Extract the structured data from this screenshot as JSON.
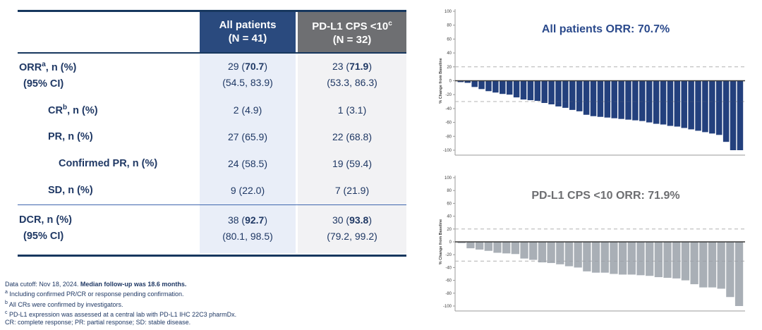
{
  "table": {
    "header": {
      "col1": {
        "line1": "All patients",
        "line2": "(N = 41)"
      },
      "col2": {
        "line1_pre": "PD-L1 CPS <10",
        "line1_sup": "c",
        "line2": "(N = 32)"
      }
    },
    "rows": [
      {
        "label_main": "ORR",
        "label_sup": "a",
        "label_rest": ", n (%)",
        "label_sub": "(95% CI)",
        "cells": [
          {
            "pre": "29 (",
            "bold": "70.7",
            "post": ")",
            "sub": "(54.5, 83.9)"
          },
          {
            "pre": "23 (",
            "bold": "71.9",
            "post": ")",
            "sub": "(53.3, 86.3)"
          }
        ]
      },
      {
        "label_main": "CR",
        "label_sup": "b",
        "label_rest": ", n (%)",
        "cells": [
          {
            "pre": "2 (4.9)"
          },
          {
            "pre": "1 (3.1)"
          }
        ]
      },
      {
        "label_main": "PR",
        "label_rest": ", n (%)",
        "cells": [
          {
            "pre": "27 (65.9)"
          },
          {
            "pre": "22 (68.8)"
          }
        ]
      },
      {
        "label_main": "Confirmed PR",
        "label_rest": ", n (%)",
        "cells": [
          {
            "pre": "24 (58.5)"
          },
          {
            "pre": "19 (59.4)"
          }
        ]
      },
      {
        "label_main": "SD",
        "label_rest": ", n (%)",
        "cells": [
          {
            "pre": "9 (22.0)"
          },
          {
            "pre": "7 (21.9)"
          }
        ]
      },
      {
        "label_main": "DCR",
        "label_rest": ", n (%)",
        "label_sub": "(95% CI)",
        "cells": [
          {
            "pre": "38 (",
            "bold": "92.7",
            "post": ")",
            "sub": "(80.1, 98.5)"
          },
          {
            "pre": "30 (",
            "bold": "93.8",
            "post": ")",
            "sub": "(79.2, 99.2)"
          }
        ]
      }
    ]
  },
  "footnotes": {
    "line1_pre": "Data cutoff: Nov 18, 2024. ",
    "line1_bold": "Median follow-up was 18.6 months.",
    "line2_sup": "a",
    "line2_text": " Including confirmed PR/CR or response pending confirmation.",
    "line3_sup": "b",
    "line3_text": " All CRs were confirmed by investigators.",
    "line4_sup": "c",
    "line4_text": " PD-L1 expression was assessed at a central lab with PD-L1 IHC 22C3 pharmDx.",
    "line5": "CR: complete response; PR: partial response; SD: stable disease."
  },
  "colors": {
    "header_navy": "#2a4a7e",
    "header_gray": "#6e6f72",
    "column_blue_bg": "#e9eef8",
    "column_gray_bg": "#f2f2f4",
    "text_navy": "#1f3864",
    "rule_navy": "#17375e"
  },
  "chart_data": [
    {
      "type": "bar",
      "title": "All patients ORR: 70.7%",
      "title_color": "#2b4a8c",
      "bar_color": "#23407d",
      "ylabel": "% Change from Baseline",
      "xlabel": "",
      "ylim": [
        -100,
        100
      ],
      "ytick_step": 20,
      "ref_lines": [
        20,
        -30
      ],
      "grid": false,
      "legend": "none",
      "values": [
        -2,
        -3,
        -9,
        -12,
        -15,
        -17,
        -19,
        -20,
        -24,
        -27,
        -28,
        -29,
        -32,
        -34,
        -37,
        -39,
        -42,
        -44,
        -49,
        -51,
        -52,
        -53,
        -54,
        -55,
        -56,
        -57,
        -58,
        -60,
        -62,
        -63,
        -65,
        -66,
        -68,
        -70,
        -72,
        -74,
        -76,
        -78,
        -88,
        -100,
        -100
      ]
    },
    {
      "type": "bar",
      "title": "PD-L1 CPS <10 ORR: 71.9%",
      "title_color": "#6d6e71",
      "bar_color": "#a9afb6",
      "ylabel": "% Change from Baseline",
      "xlabel": "",
      "ylim": [
        -100,
        100
      ],
      "ytick_step": 20,
      "ref_lines": [
        20,
        -30
      ],
      "grid": false,
      "legend": "none",
      "values": [
        -2,
        -10,
        -12,
        -14,
        -17,
        -18,
        -19,
        -26,
        -28,
        -32,
        -33,
        -35,
        -38,
        -40,
        -46,
        -48,
        -48,
        -50,
        -51,
        -51,
        -52,
        -53,
        -55,
        -56,
        -57,
        -60,
        -66,
        -71,
        -71,
        -73,
        -86,
        -100
      ]
    }
  ]
}
